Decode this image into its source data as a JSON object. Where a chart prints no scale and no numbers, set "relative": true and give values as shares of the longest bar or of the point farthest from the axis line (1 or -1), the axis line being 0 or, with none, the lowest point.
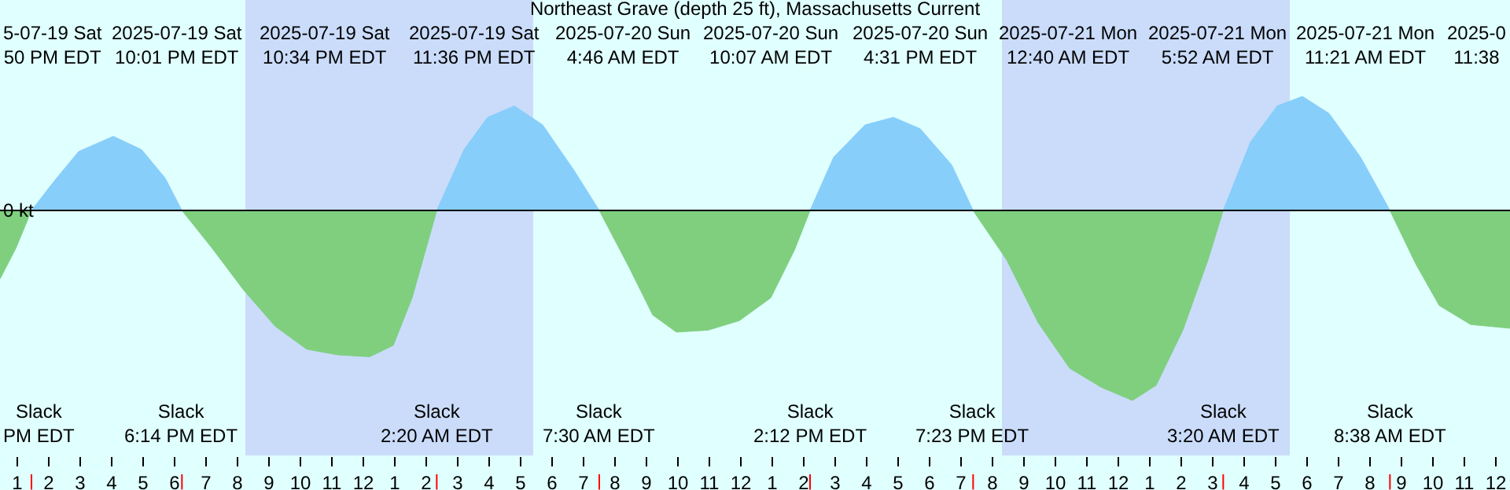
{
  "chart_data": {
    "type": "area",
    "title": "Northeast Grave (depth 25 ft), Massachusetts Current",
    "relative": true,
    "x": [
      "2025-07-19T12:27",
      "2025-07-19T12:57",
      "2025-07-19T13:27",
      "2025-07-19T14:12",
      "2025-07-19T14:57",
      "2025-07-19T16:03",
      "2025-07-19T16:57",
      "2025-07-19T17:42",
      "2025-07-19T18:14",
      "2025-07-19T19:12",
      "2025-07-19T20:12",
      "2025-07-19T21:12",
      "2025-07-19T22:12",
      "2025-07-19T23:12",
      "2025-07-20T00:12",
      "2025-07-20T00:57",
      "2025-07-20T01:33",
      "2025-07-20T02:20",
      "2025-07-20T03:12",
      "2025-07-20T03:57",
      "2025-07-20T04:48",
      "2025-07-20T05:42",
      "2025-07-20T06:42",
      "2025-07-20T07:30",
      "2025-07-20T08:27",
      "2025-07-20T09:12",
      "2025-07-20T09:57",
      "2025-07-20T10:57",
      "2025-07-20T11:57",
      "2025-07-20T12:57",
      "2025-07-20T13:42",
      "2025-07-20T14:12",
      "2025-07-20T14:57",
      "2025-07-20T15:57",
      "2025-07-20T16:51",
      "2025-07-20T17:42",
      "2025-07-20T18:42",
      "2025-07-20T19:23",
      "2025-07-20T20:27",
      "2025-07-20T21:27",
      "2025-07-20T22:27",
      "2025-07-20T23:27",
      "2025-07-21T00:27",
      "2025-07-21T01:12",
      "2025-07-21T02:03",
      "2025-07-21T02:51",
      "2025-07-21T03:20",
      "2025-07-21T04:12",
      "2025-07-21T05:03",
      "2025-07-21T05:51",
      "2025-07-21T06:42",
      "2025-07-21T07:42",
      "2025-07-21T08:38",
      "2025-07-21T09:27",
      "2025-07-21T10:12",
      "2025-07-21T11:12",
      "2025-07-21T12:27"
    ],
    "series": [
      {
        "color": "#87cefa",
        "values": [
          null,
          null,
          0,
          0.16,
          0.31,
          0.39,
          0.32,
          0.17,
          0,
          null,
          null,
          null,
          null,
          null,
          null,
          null,
          null,
          0,
          0.32,
          0.49,
          0.55,
          0.45,
          0.21,
          0,
          null,
          null,
          null,
          null,
          null,
          null,
          null,
          0,
          0.28,
          0.45,
          0.49,
          0.43,
          0.24,
          0,
          null,
          null,
          null,
          null,
          null,
          null,
          null,
          null,
          0,
          0.36,
          0.55,
          0.6,
          0.51,
          0.28,
          0,
          null,
          null,
          null,
          null
        ]
      },
      {
        "color": "#7fcf7f",
        "values": [
          -0.36,
          -0.2,
          0,
          null,
          null,
          null,
          null,
          null,
          0,
          -0.2,
          -0.42,
          -0.61,
          -0.73,
          -0.76,
          -0.77,
          -0.71,
          -0.46,
          0,
          null,
          null,
          null,
          null,
          null,
          0,
          -0.3,
          -0.55,
          -0.64,
          -0.63,
          -0.58,
          -0.46,
          -0.21,
          0,
          null,
          null,
          null,
          null,
          null,
          0,
          -0.26,
          -0.59,
          -0.83,
          -0.93,
          -1,
          -0.92,
          -0.63,
          -0.26,
          0,
          null,
          null,
          null,
          null,
          null,
          0,
          -0.28,
          -0.5,
          -0.6,
          -0.62
        ]
      }
    ],
    "xlim": [
      "2025-07-19T12:27",
      "2025-07-21T12:27"
    ],
    "xticks": [
      {
        "value": "2025-07-19T13:00",
        "label": "1"
      },
      {
        "value": "2025-07-19T14:00",
        "label": "2"
      },
      {
        "value": "2025-07-19T15:00",
        "label": "3"
      },
      {
        "value": "2025-07-19T16:00",
        "label": "4"
      },
      {
        "value": "2025-07-19T17:00",
        "label": "5"
      },
      {
        "value": "2025-07-19T18:00",
        "label": "6"
      },
      {
        "value": "2025-07-19T19:00",
        "label": "7"
      },
      {
        "value": "2025-07-19T20:00",
        "label": "8"
      },
      {
        "value": "2025-07-19T21:00",
        "label": "9"
      },
      {
        "value": "2025-07-19T22:00",
        "label": "10"
      },
      {
        "value": "2025-07-19T23:00",
        "label": "11"
      },
      {
        "value": "2025-07-20T00:00",
        "label": "12"
      },
      {
        "value": "2025-07-20T01:00",
        "label": "1"
      },
      {
        "value": "2025-07-20T02:00",
        "label": "2"
      },
      {
        "value": "2025-07-20T03:00",
        "label": "3"
      },
      {
        "value": "2025-07-20T04:00",
        "label": "4"
      },
      {
        "value": "2025-07-20T05:00",
        "label": "5"
      },
      {
        "value": "2025-07-20T06:00",
        "label": "6"
      },
      {
        "value": "2025-07-20T07:00",
        "label": "7"
      },
      {
        "value": "2025-07-20T08:00",
        "label": "8"
      },
      {
        "value": "2025-07-20T09:00",
        "label": "9"
      },
      {
        "value": "2025-07-20T10:00",
        "label": "10"
      },
      {
        "value": "2025-07-20T11:00",
        "label": "11"
      },
      {
        "value": "2025-07-20T12:00",
        "label": "12"
      },
      {
        "value": "2025-07-20T13:00",
        "label": "1"
      },
      {
        "value": "2025-07-20T14:00",
        "label": "2"
      },
      {
        "value": "2025-07-20T15:00",
        "label": "3"
      },
      {
        "value": "2025-07-20T16:00",
        "label": "4"
      },
      {
        "value": "2025-07-20T17:00",
        "label": "5"
      },
      {
        "value": "2025-07-20T18:00",
        "label": "6"
      },
      {
        "value": "2025-07-20T19:00",
        "label": "7"
      },
      {
        "value": "2025-07-20T20:00",
        "label": "8"
      },
      {
        "value": "2025-07-20T21:00",
        "label": "9"
      },
      {
        "value": "2025-07-20T22:00",
        "label": "10"
      },
      {
        "value": "2025-07-20T23:00",
        "label": "11"
      },
      {
        "value": "2025-07-21T00:00",
        "label": "12"
      },
      {
        "value": "2025-07-21T01:00",
        "label": "1"
      },
      {
        "value": "2025-07-21T02:00",
        "label": "2"
      },
      {
        "value": "2025-07-21T03:00",
        "label": "3"
      },
      {
        "value": "2025-07-21T04:00",
        "label": "4"
      },
      {
        "value": "2025-07-21T05:00",
        "label": "5"
      },
      {
        "value": "2025-07-21T06:00",
        "label": "6"
      },
      {
        "value": "2025-07-21T07:00",
        "label": "7"
      },
      {
        "value": "2025-07-21T08:00",
        "label": "8"
      },
      {
        "value": "2025-07-21T09:00",
        "label": "9"
      },
      {
        "value": "2025-07-21T10:00",
        "label": "10"
      },
      {
        "value": "2025-07-21T11:00",
        "label": "11"
      },
      {
        "value": "2025-07-21T12:00",
        "label": "12"
      }
    ],
    "ref_lines": [
      {
        "axis": "y",
        "value": 0,
        "label": "0 kt",
        "color": "#000000"
      }
    ],
    "bands": [
      {
        "axis": "x",
        "from": "2025-07-19T20:15",
        "to": "2025-07-20T05:24",
        "color": "#cadcfa"
      },
      {
        "axis": "x",
        "from": "2025-07-20T20:18",
        "to": "2025-07-21T05:27",
        "color": "#cadcfa"
      }
    ],
    "annotations": [
      "5-07-19 Sat\n50 PM EDT",
      "2025-07-19 Sat\n10:01 PM EDT",
      "2025-07-19 Sat\n10:34 PM EDT",
      "2025-07-19 Sat\n11:36 PM EDT",
      "2025-07-20 Sun\n4:46 AM EDT",
      "2025-07-20 Sun\n10:07 AM EDT",
      "2025-07-20 Sun\n4:31 PM EDT",
      "2025-07-21 Mon\n12:40 AM EDT",
      "2025-07-21 Mon\n5:52 AM EDT",
      "2025-07-21 Mon\n11:21 AM EDT",
      "2025-0\n11:38",
      "Slack\nPM EDT",
      "Slack\n6:14 PM EDT",
      "Slack\n2:20 AM EDT",
      "Slack\n7:30 AM EDT",
      "Slack\n2:12 PM EDT",
      "Slack\n7:23 PM EDT",
      "Slack\n3:20 AM EDT",
      "Slack\n8:38 AM EDT"
    ]
  }
}
